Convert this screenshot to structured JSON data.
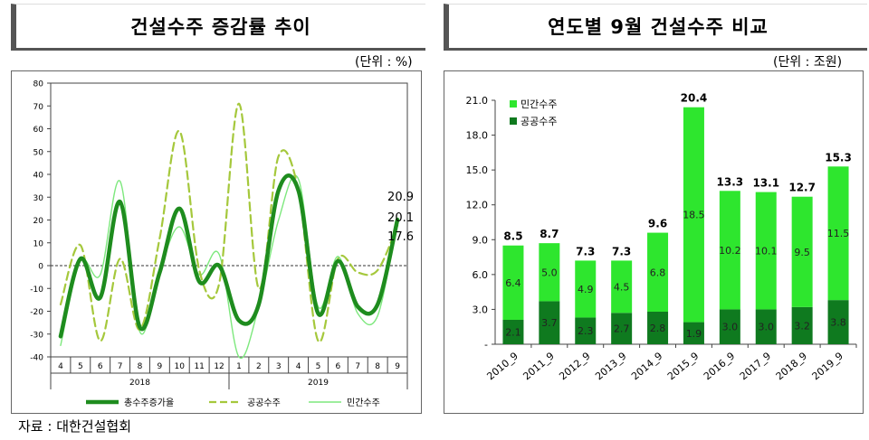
{
  "left": {
    "title": "건설수주 증감률 추이",
    "unit": "(단위 : %)",
    "chart_data": {
      "type": "line",
      "x_months": [
        "4",
        "5",
        "6",
        "7",
        "8",
        "9",
        "10",
        "11",
        "12",
        "1",
        "2",
        "3",
        "4",
        "5",
        "6",
        "7",
        "8",
        "9"
      ],
      "year_labels": [
        "2018",
        "2019"
      ],
      "yticks": [
        "80",
        "70",
        "60",
        "50",
        "40",
        "30",
        "20",
        "10",
        "0",
        "-10",
        "-20",
        "-30",
        "-40"
      ],
      "ylim": [
        -40,
        80
      ],
      "series": [
        {
          "name": "총수주증가율",
          "color": "#1e8c1e",
          "style": "solid-thick",
          "values": [
            -31,
            3,
            -14,
            28,
            -27,
            -3,
            25,
            -7,
            0,
            -24,
            -17,
            33,
            33,
            -21,
            2,
            -18,
            -17,
            20.1
          ]
        },
        {
          "name": "공공수주",
          "color": "#a5c83c",
          "style": "dashed",
          "values": [
            -17,
            9,
            -33,
            3,
            -28,
            12,
            59,
            -2,
            -8,
            71,
            -10,
            48,
            33,
            -33,
            3,
            -3,
            -2,
            17.6
          ]
        },
        {
          "name": "민간수주",
          "color": "#7de87d",
          "style": "thin",
          "values": [
            -35,
            2,
            -4,
            37,
            -29,
            -2,
            17,
            -4,
            5,
            -40,
            -18,
            20,
            38,
            -18,
            4,
            -21,
            -22,
            20.9
          ]
        }
      ],
      "end_labels": [
        "20.9",
        "20.1",
        "17.6"
      ]
    }
  },
  "right": {
    "title": "연도별 9월 건설수주 비교",
    "unit": "(단위 : 조원)",
    "chart_data": {
      "type": "bar",
      "stacked": true,
      "categories": [
        "2010_9",
        "2011_9",
        "2012_9",
        "2013_9",
        "2014_9",
        "2015_9",
        "2016_9",
        "2017_9",
        "2018_9",
        "2019_9"
      ],
      "yticks": [
        "21.0",
        "18.0",
        "15.0",
        "12.0",
        "9.0",
        "6.0",
        "3.0",
        "-"
      ],
      "ylim": [
        0,
        21
      ],
      "series": [
        {
          "name": "공공수주",
          "color": "#0f7a1f",
          "values": [
            2.1,
            3.7,
            2.3,
            2.7,
            2.8,
            1.9,
            3.0,
            3.0,
            3.2,
            3.8
          ],
          "labels": [
            "2.1",
            "3.7",
            "2.3",
            "2.7",
            "2.8",
            "1.9",
            "3.0",
            "3.0",
            "3.2",
            "3.8"
          ]
        },
        {
          "name": "민간수주",
          "color": "#2ee62e",
          "values": [
            6.4,
            5.0,
            4.9,
            4.5,
            6.8,
            18.5,
            10.2,
            10.1,
            9.5,
            11.5
          ],
          "labels": [
            "6.4",
            "5.0",
            "4.9",
            "4.5",
            "6.8",
            "18.5",
            "10.2",
            "10.1",
            "9.5",
            "11.5"
          ]
        }
      ],
      "totals": [
        "8.5",
        "8.7",
        "7.3",
        "7.3",
        "9.6",
        "20.4",
        "13.3",
        "13.1",
        "12.7",
        "15.3"
      ],
      "legend": [
        "민간수주",
        "공공수주"
      ]
    }
  },
  "source": "자료 : 대한건설협회"
}
